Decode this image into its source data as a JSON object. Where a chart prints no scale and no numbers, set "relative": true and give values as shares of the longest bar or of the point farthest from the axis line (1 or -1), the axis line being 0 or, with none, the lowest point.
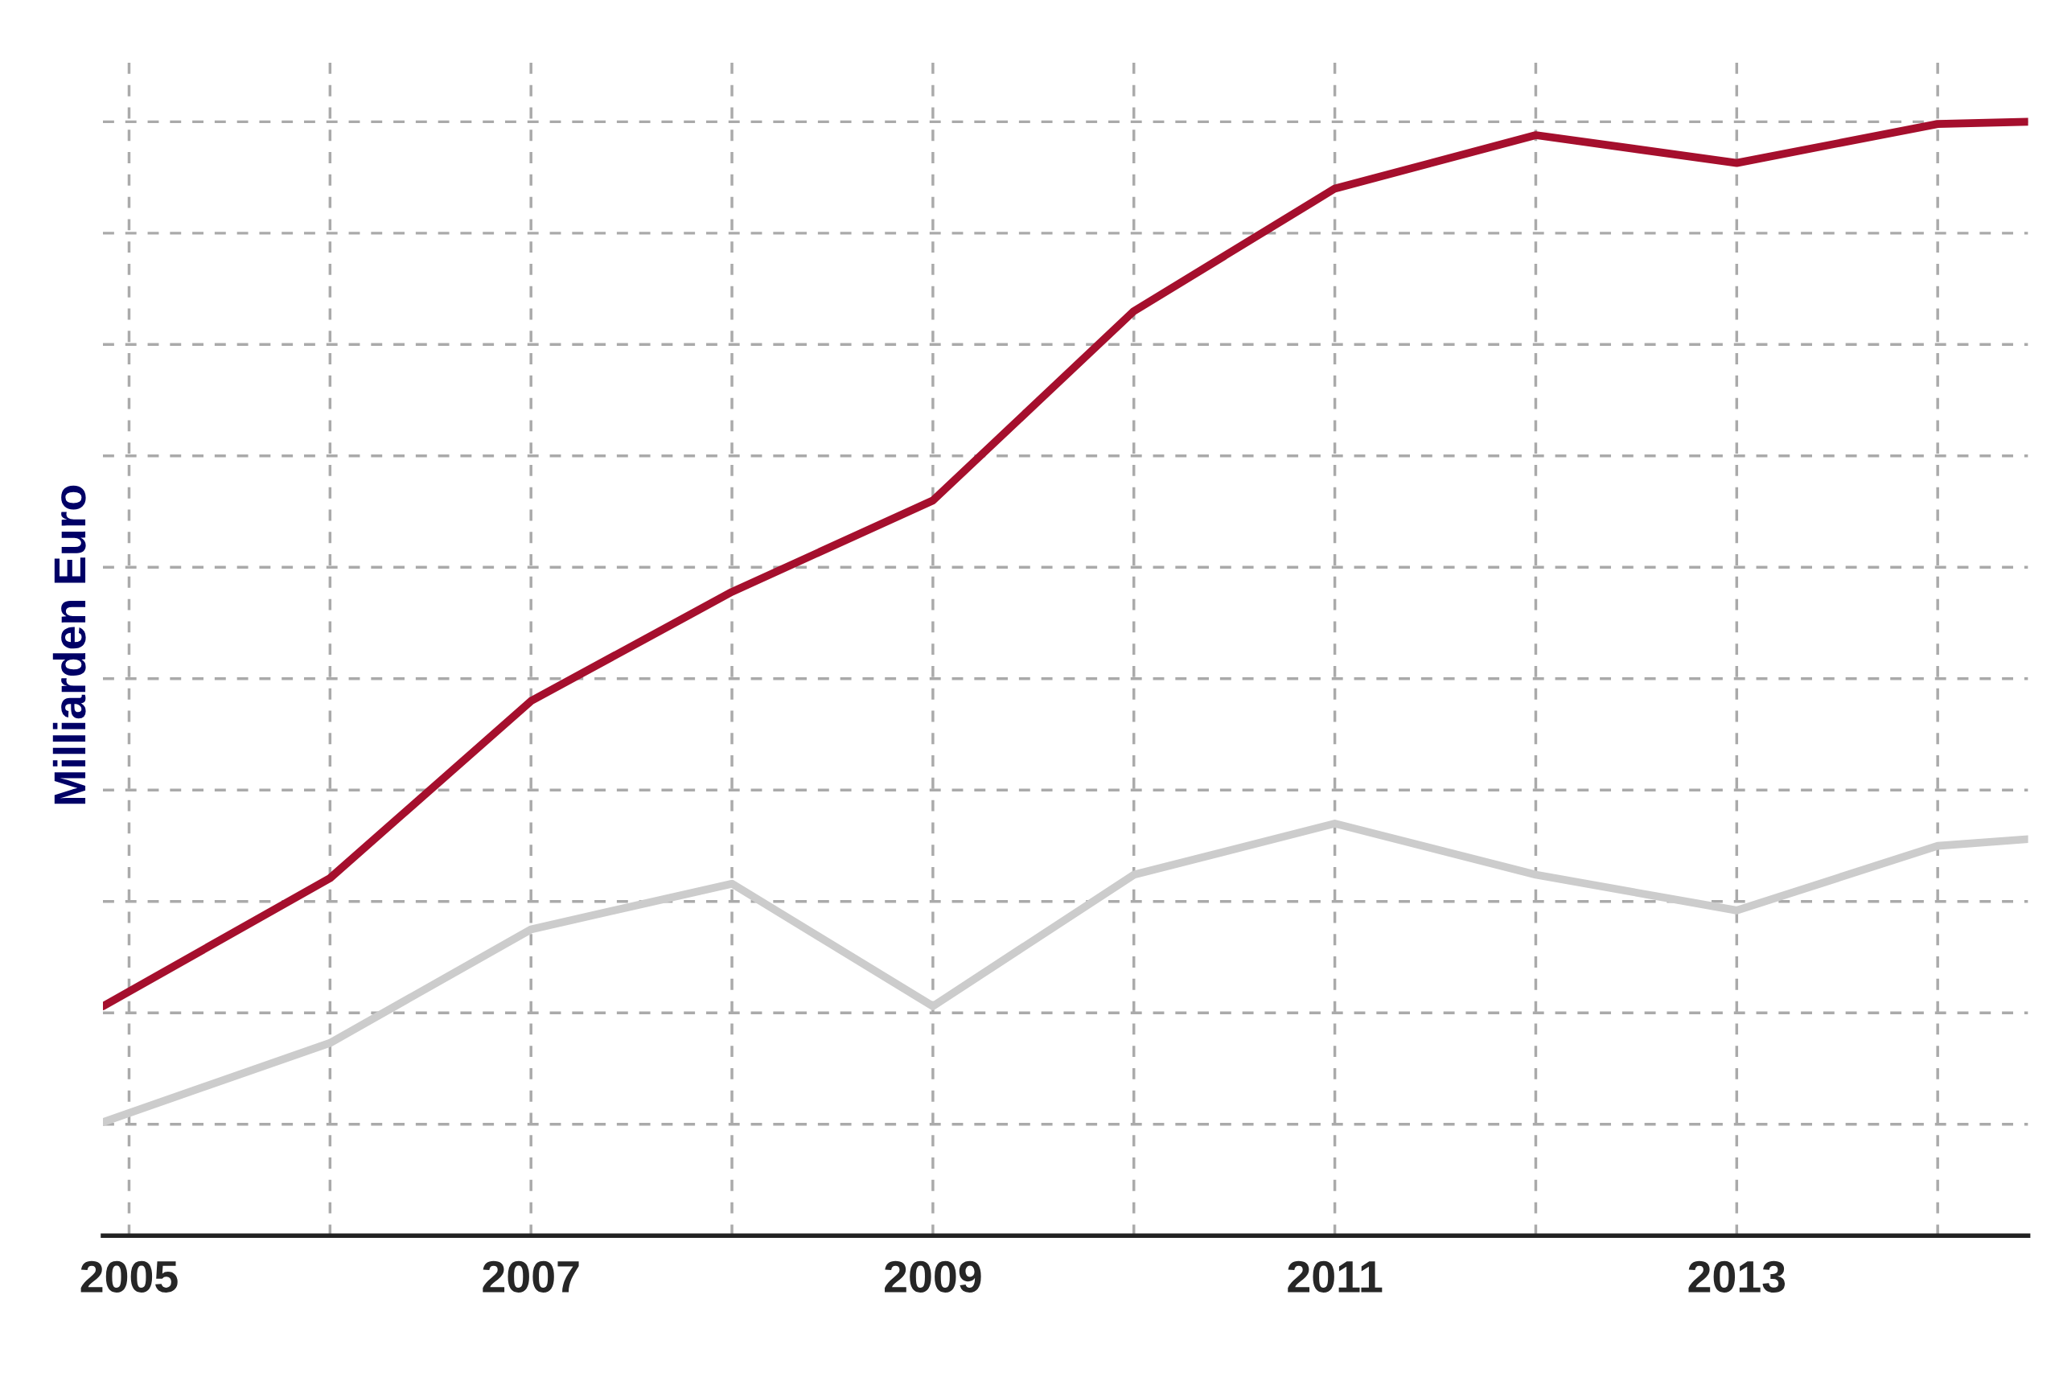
{
  "chart_data": {
    "type": "line",
    "ylabel": "Milliarden Euro",
    "relative": true,
    "x": [
      2004.87,
      2006,
      2007,
      2008,
      2009,
      2010,
      2011,
      2012,
      2013,
      2014,
      2014.45
    ],
    "series": [
      {
        "color": "#a50f2d",
        "values": [
          0.206,
          0.321,
          0.48,
          0.578,
          0.66,
          0.83,
          0.94,
          0.988,
          0.963,
          0.998,
          1.0
        ]
      },
      {
        "color": "#cccccc",
        "values": [
          0.102,
          0.173,
          0.275,
          0.316,
          0.206,
          0.324,
          0.37,
          0.324,
          0.292,
          0.35,
          0.356
        ]
      }
    ],
    "xlim": [
      2004.87,
      2014.45
    ],
    "xticks": [
      2005,
      {
        "value": 2006,
        "label": null
      },
      2007,
      {
        "value": 2008,
        "label": null
      },
      2009,
      {
        "value": 2010,
        "label": null
      },
      2011,
      {
        "value": 2012,
        "label": null
      },
      2013,
      {
        "value": 2014,
        "label": null
      }
    ],
    "grid": true,
    "line_style": "solid"
  }
}
